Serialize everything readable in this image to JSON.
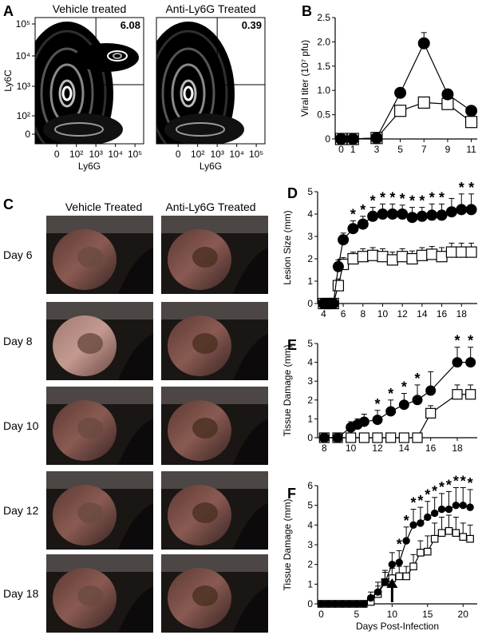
{
  "figure": {
    "panel_labels": {
      "A": "A",
      "B": "B",
      "C": "C",
      "D": "D",
      "E": "E",
      "F": "F"
    }
  },
  "panel_a": {
    "plots": [
      {
        "title": "Vehicle treated",
        "gate_value": "6.08"
      },
      {
        "title": "Anti-Ly6G Treated",
        "gate_value": "0.39"
      }
    ],
    "ylabel": "Ly6C",
    "xlabel": "Ly6G",
    "y_ticks": [
      "10⁵",
      "10⁴",
      "10³",
      "10²",
      "0"
    ],
    "x_ticks": [
      "0",
      "10²",
      "10³",
      "10⁴",
      "10⁵"
    ]
  },
  "panel_c": {
    "columns": [
      "Vehicle Treated",
      "Anti-Ly6G Treated"
    ],
    "rows": [
      "Day 6",
      "Day 8",
      "Day 10",
      "Day 12",
      "Day 18"
    ]
  },
  "chart_data": [
    {
      "id": "B",
      "type": "line",
      "ylabel": "Viral titer (10⁷ pfu)",
      "xlabel": "",
      "xlim": [
        -0.5,
        11.5
      ],
      "ylim": [
        0,
        2.5
      ],
      "x_ticks": [
        0,
        1,
        3,
        5,
        7,
        9,
        11
      ],
      "y_ticks": [
        0,
        0.5,
        1.0,
        1.5,
        2.0,
        2.5
      ],
      "y_tick_labels": [
        "0",
        "0.5",
        "1.0",
        "1.5",
        "2.0",
        "2.5"
      ],
      "series": [
        {
          "marker": "filled-circle",
          "x": [
            0,
            1,
            3,
            5,
            7,
            9,
            11
          ],
          "y": [
            0,
            0,
            0.02,
            0.95,
            1.97,
            0.92,
            0.58
          ],
          "err": [
            0,
            0,
            0,
            0,
            0.22,
            0,
            0
          ]
        },
        {
          "marker": "open-square",
          "x": [
            0,
            1,
            3,
            5,
            7,
            9,
            11
          ],
          "y": [
            0,
            0,
            0.02,
            0.58,
            0.75,
            0.72,
            0.35
          ],
          "err": [
            0,
            0,
            0,
            0,
            0.1,
            0.1,
            0
          ]
        }
      ]
    },
    {
      "id": "D",
      "type": "line",
      "ylabel": "Lesion Size (mm)",
      "xlabel": "",
      "xlim": [
        3.4,
        19.6
      ],
      "ylim": [
        0,
        5
      ],
      "x_ticks": [
        4,
        6,
        8,
        10,
        12,
        14,
        16,
        18
      ],
      "y_ticks": [
        0,
        1,
        2,
        3,
        4,
        5
      ],
      "series": [
        {
          "marker": "filled-circle",
          "x": [
            4,
            4.5,
            5,
            5.5,
            6,
            7,
            8,
            9,
            10,
            11,
            12,
            13,
            14,
            15,
            16,
            17,
            18,
            19
          ],
          "y": [
            0,
            0,
            0,
            1.65,
            2.85,
            3.35,
            3.55,
            3.9,
            4.0,
            4.0,
            4.0,
            3.85,
            3.9,
            3.95,
            3.95,
            4.1,
            4.2,
            4.2
          ],
          "err": [
            0,
            0,
            0,
            0.3,
            0.3,
            0.35,
            0.35,
            0.4,
            0.45,
            0.45,
            0.4,
            0.45,
            0.4,
            0.5,
            0.5,
            0.6,
            0.7,
            0.7
          ]
        },
        {
          "marker": "open-square",
          "x": [
            4,
            4.5,
            5,
            5.5,
            6,
            7,
            8,
            9,
            10,
            11,
            12,
            13,
            14,
            15,
            16,
            17,
            18,
            19
          ],
          "y": [
            0,
            0,
            0,
            0.8,
            1.75,
            2.0,
            2.1,
            2.15,
            2.1,
            1.95,
            2.1,
            2.0,
            2.15,
            2.2,
            2.1,
            2.3,
            2.3,
            2.3
          ],
          "err": [
            0,
            0,
            0,
            0.3,
            0.3,
            0.3,
            0.35,
            0.35,
            0.35,
            0.35,
            0.35,
            0.35,
            0.35,
            0.35,
            0.4,
            0.4,
            0.4,
            0.4
          ]
        }
      ],
      "significance": [
        {
          "x": 7,
          "label": "*"
        },
        {
          "x": 8,
          "label": "*"
        },
        {
          "x": 9,
          "label": "*"
        },
        {
          "x": 10,
          "label": "*"
        },
        {
          "x": 11,
          "label": "*"
        },
        {
          "x": 12,
          "label": "*"
        },
        {
          "x": 13,
          "label": "*"
        },
        {
          "x": 14,
          "label": "*"
        },
        {
          "x": 15,
          "label": "*"
        },
        {
          "x": 16,
          "label": "*"
        },
        {
          "x": 18,
          "label": "*"
        },
        {
          "x": 19,
          "label": "*"
        }
      ]
    },
    {
      "id": "E",
      "type": "line",
      "ylabel": "Tissue Damage (mm)",
      "xlabel": "",
      "xlim": [
        7.5,
        19.5
      ],
      "ylim": [
        0,
        5
      ],
      "x_ticks": [
        8,
        10,
        12,
        14,
        16,
        18
      ],
      "y_ticks": [
        0,
        1,
        2,
        3,
        4,
        5
      ],
      "series": [
        {
          "marker": "filled-circle",
          "x": [
            8,
            9,
            10,
            10.5,
            11,
            12,
            13,
            14,
            15,
            16,
            18,
            19
          ],
          "y": [
            0,
            0,
            0.55,
            0.7,
            0.85,
            0.95,
            1.4,
            1.75,
            2.0,
            2.5,
            4.0,
            4.0
          ],
          "err": [
            0,
            0,
            0.3,
            0.3,
            0.4,
            0.5,
            0.6,
            0.6,
            0.8,
            1.0,
            0.8,
            0.8
          ]
        },
        {
          "marker": "open-square",
          "x": [
            8,
            9,
            10,
            11,
            12,
            13,
            14,
            15,
            16,
            18,
            19
          ],
          "y": [
            0,
            0,
            0,
            0,
            0,
            0,
            0,
            0,
            1.3,
            2.3,
            2.3
          ],
          "err": [
            0,
            0,
            0,
            0,
            0,
            0,
            0,
            0,
            0.4,
            0.5,
            0.5
          ]
        }
      ],
      "significance": [
        {
          "x": 12,
          "label": "*"
        },
        {
          "x": 13,
          "label": "*"
        },
        {
          "x": 14,
          "label": "*"
        },
        {
          "x": 15,
          "label": "*"
        },
        {
          "x": 18,
          "label": "*"
        },
        {
          "x": 19,
          "label": "*"
        }
      ]
    },
    {
      "id": "F",
      "type": "line",
      "ylabel": "Tissue Damage (mm)",
      "xlabel": "Days Post-Infection",
      "xlim": [
        -0.5,
        22
      ],
      "ylim": [
        0,
        6
      ],
      "x_ticks": [
        0,
        5,
        10,
        15,
        20
      ],
      "y_ticks": [
        0,
        1,
        2,
        3,
        4,
        5,
        6
      ],
      "arrow_x": 10,
      "series": [
        {
          "marker": "filled-circle",
          "x": [
            0,
            1,
            2,
            3,
            4,
            5,
            6,
            7,
            8,
            9,
            10,
            11,
            12,
            13,
            14,
            15,
            16,
            17,
            18,
            19,
            20,
            21
          ],
          "y": [
            0,
            0,
            0,
            0,
            0,
            0,
            0,
            0.3,
            0.6,
            1.1,
            2.0,
            2.1,
            3.2,
            4.0,
            4.1,
            4.4,
            4.6,
            4.8,
            4.8,
            5.0,
            5.0,
            4.9
          ],
          "err": [
            0,
            0,
            0,
            0,
            0,
            0,
            0,
            0.3,
            0.5,
            0.6,
            0.6,
            0.6,
            0.7,
            0.8,
            0.8,
            0.8,
            0.8,
            0.8,
            0.9,
            0.9,
            0.9,
            0.9
          ]
        },
        {
          "marker": "open-square",
          "x": [
            0,
            1,
            2,
            3,
            4,
            5,
            6,
            7,
            8,
            9,
            10,
            11,
            12,
            13,
            14,
            15,
            16,
            17,
            18,
            19,
            20,
            21
          ],
          "y": [
            0,
            0,
            0,
            0,
            0,
            0,
            0,
            0.1,
            0.5,
            1.1,
            1.3,
            1.4,
            1.4,
            1.9,
            2.6,
            2.65,
            3.3,
            3.6,
            3.7,
            3.6,
            3.4,
            3.3
          ],
          "err": [
            0,
            0,
            0,
            0,
            0,
            0,
            0,
            0.2,
            0.4,
            0.5,
            0.5,
            0.5,
            0.5,
            0.6,
            0.6,
            0.8,
            0.8,
            0.8,
            0.8,
            0.8,
            0.7,
            0.7
          ]
        }
      ],
      "significance": [
        {
          "x": 11,
          "label": "*"
        },
        {
          "x": 12,
          "label": "*"
        },
        {
          "x": 13,
          "label": "*"
        },
        {
          "x": 14,
          "label": "*"
        },
        {
          "x": 15,
          "label": "*"
        },
        {
          "x": 16,
          "label": "*"
        },
        {
          "x": 17,
          "label": "*"
        },
        {
          "x": 18,
          "label": "*"
        },
        {
          "x": 19,
          "label": "*"
        },
        {
          "x": 20,
          "label": "*"
        },
        {
          "x": 21,
          "label": "*"
        }
      ]
    }
  ]
}
